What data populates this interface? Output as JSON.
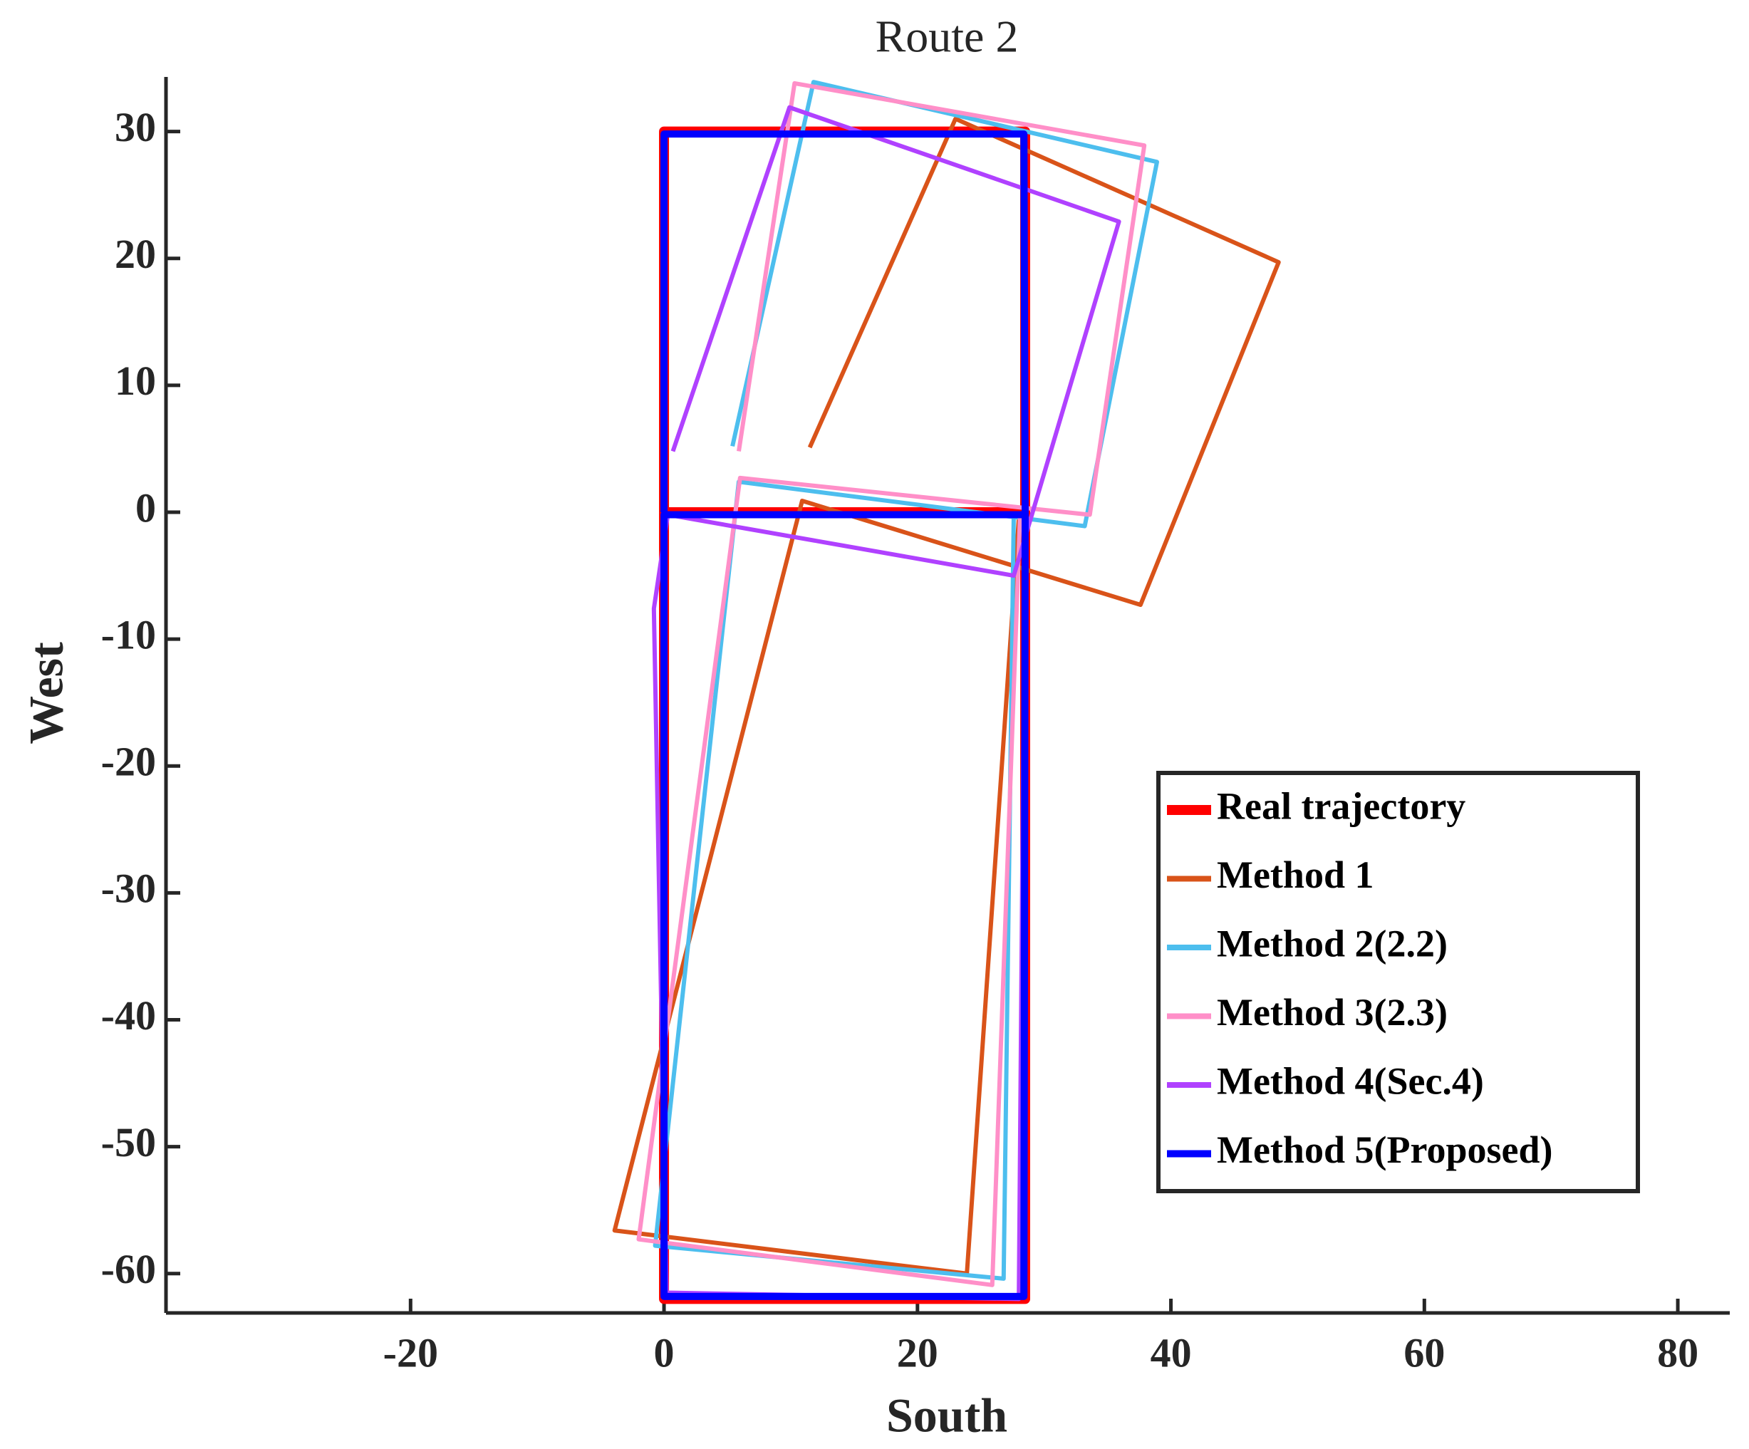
{
  "chart_data": {
    "type": "line",
    "title": "Route 2",
    "x_label": "South",
    "y_label": "West",
    "xlim": [
      -39.3,
      84.1
    ],
    "ylim": [
      -63.1,
      34.3
    ],
    "xticks": [
      -20,
      0,
      20,
      40,
      60,
      80
    ],
    "yticks": [
      -60,
      -50,
      -40,
      -30,
      -20,
      -10,
      0,
      10,
      20,
      30
    ],
    "legend": "right",
    "series": [
      {
        "name": "Real trajectory",
        "color": "#ff0000",
        "linewidth": 14,
        "x": [
          0,
          0,
          28.5,
          28.5,
          0,
          0,
          28.5,
          28.5
        ],
        "y": [
          0,
          30,
          30,
          0,
          0,
          -62,
          -62,
          0
        ]
      },
      {
        "name": "Method 1",
        "color": "#d95319",
        "linewidth": 6,
        "x": [
          11.5,
          23,
          48.5,
          37.6,
          10.9,
          -3.9,
          23.9,
          28
        ],
        "y": [
          5.1,
          31,
          19.7,
          -7.3,
          0.9,
          -56.6,
          -60,
          -0.5
        ]
      },
      {
        "name": "Method 2(2.2)",
        "color": "#4dbeee",
        "linewidth": 6,
        "x": [
          5.4,
          11.8,
          38.9,
          33.2,
          5.9,
          -0.7,
          26.8,
          27.6
        ],
        "y": [
          5.2,
          33.9,
          27.6,
          -1.1,
          2.4,
          -57.8,
          -60.4,
          -0.1
        ]
      },
      {
        "name": "Method 3(2.3)",
        "color": "#ff8fc8",
        "linewidth": 6,
        "x": [
          5.9,
          10.3,
          37.9,
          33.6,
          6,
          -2,
          25.9,
          28.1
        ],
        "y": [
          4.8,
          33.8,
          28.9,
          -0.2,
          2.7,
          -57.3,
          -60.9,
          -0.1
        ]
      },
      {
        "name": "Method 4(Sec.4)",
        "color": "#b041ff",
        "linewidth": 6,
        "x": [
          0.7,
          9.9,
          35.9,
          27.6,
          0.3,
          -0.8,
          0.2,
          28,
          28.5
        ],
        "y": [
          4.8,
          31.9,
          22.9,
          -5,
          -0.2,
          -7.6,
          -61.5,
          -62,
          0
        ]
      },
      {
        "name": "Method 5(Proposed)",
        "color": "#0000ff",
        "linewidth": 10,
        "x": [
          0,
          0,
          28.4,
          28.5,
          0,
          0,
          28.4,
          28.5
        ],
        "y": [
          0,
          29.8,
          29.8,
          -0.2,
          -0.2,
          -61.8,
          -61.8,
          -0.2
        ]
      }
    ]
  }
}
